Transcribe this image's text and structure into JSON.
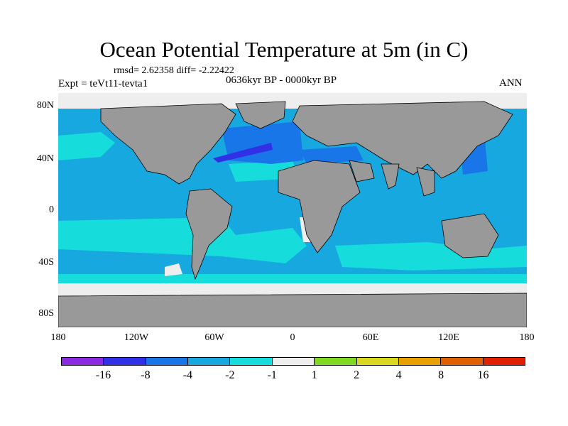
{
  "title": "Ocean Potential Temperature at 5m (in C)",
  "stats": "rmsd= 2.62358 diff= -2.22422",
  "experiment": "Expt = teVt11-tevta1",
  "period": "0636kyr BP - 0000kyr BP",
  "season": "ANN",
  "y_ticks": [
    "80N",
    "40N",
    "0",
    "40S",
    "80S"
  ],
  "x_ticks": [
    "180",
    "120W",
    "60W",
    "0",
    "60E",
    "120E",
    "180"
  ],
  "colorbar": {
    "colors": [
      "#8a2be2",
      "#3030e6",
      "#1976e8",
      "#18a8e0",
      "#16dcdc",
      "#eeeeee",
      "#80d820",
      "#d8d820",
      "#e8a000",
      "#e06000",
      "#e02000"
    ],
    "labels": [
      "-16",
      "-8",
      "-4",
      "-2",
      "-1",
      "1",
      "2",
      "4",
      "8",
      "16"
    ]
  },
  "colors": {
    "land": "#999999",
    "ocean_base": "#18a8e0",
    "ocean_cool": "#16dcdc",
    "ocean_warm_anom": "#1976e8",
    "ocean_strong": "#3030e6",
    "ice": "#eeeeee"
  }
}
